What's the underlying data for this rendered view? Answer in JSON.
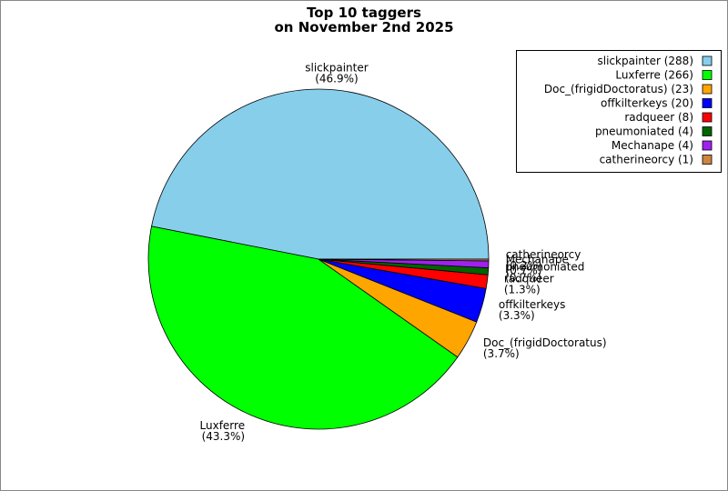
{
  "chart_data": {
    "type": "pie",
    "title": [
      "Top 10 taggers",
      "on November 2nd 2025"
    ],
    "categories": [
      "slickpainter",
      "Luxferre",
      "Doc_(frigidDoctoratus)",
      "offkilterkeys",
      "radqueer",
      "pneumoniated",
      "Mechanape",
      "catherineorcy"
    ],
    "values": [
      288,
      266,
      23,
      20,
      8,
      4,
      4,
      1
    ],
    "value_labels": [
      "(46.9%)",
      "(43.3%)",
      "(3.7%)",
      "(3.3%)",
      "(1.3%)",
      "(0.7%)",
      "(0.7%)",
      "(0.2%)"
    ],
    "legend": [
      "slickpainter (288)",
      "Luxferre (266)",
      "Doc_(frigidDoctoratus) (23)",
      "offkilterkeys (20)",
      "radqueer (8)",
      "pneumoniated (4)",
      "Mechanape (4)",
      "catherineorcy (1)"
    ],
    "colors": [
      "#87ceeb",
      "#00ff00",
      "#ffa500",
      "#0000ff",
      "#ff0000",
      "#006400",
      "#a020f0",
      "#cd853f"
    ],
    "legend_position": "upper right"
  }
}
